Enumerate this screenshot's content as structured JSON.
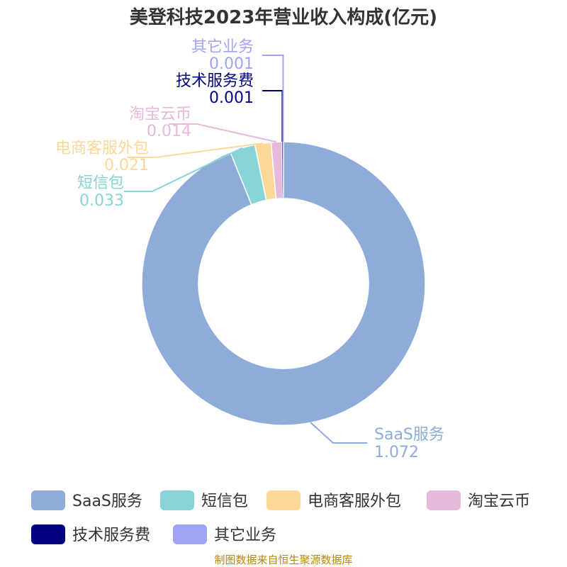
{
  "chart_data": {
    "type": "pie",
    "title": "美登科技2023年营业收入构成(亿元)",
    "series": [
      {
        "name": "SaaS服务",
        "value": 1.072,
        "label": "1.072",
        "color": "#8eacd8"
      },
      {
        "name": "短信包",
        "value": 0.033,
        "label": "0.033",
        "color": "#88d4d6"
      },
      {
        "name": "电商客服外包",
        "value": 0.021,
        "label": "0.021",
        "color": "#fcd899"
      },
      {
        "name": "淘宝云币",
        "value": 0.014,
        "label": "0.014",
        "color": "#e7b9db"
      },
      {
        "name": "技术服务费",
        "value": 0.001,
        "label": "0.001",
        "color": "#020280"
      },
      {
        "name": "其它业务",
        "value": 0.001,
        "label": "0.001",
        "color": "#a1a4f2"
      }
    ],
    "legend_position": "bottom",
    "inner_radius_ratio": 0.6
  },
  "footer": "制图数据来自恒生聚源数据库"
}
